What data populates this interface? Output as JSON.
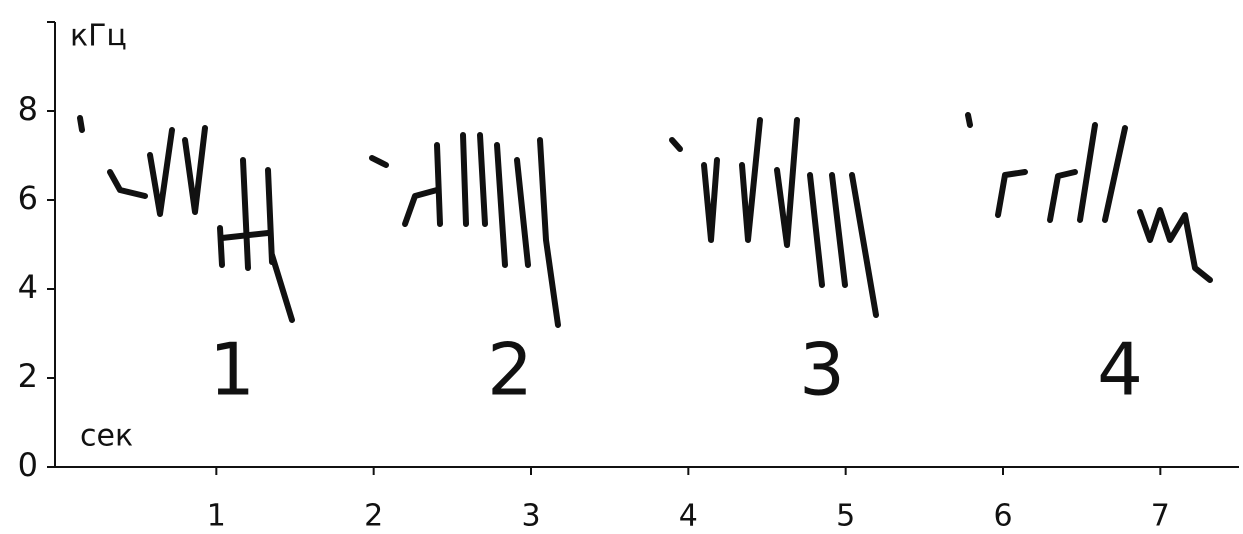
{
  "chart_data": {
    "type": "spectrogram",
    "ylabel": "кГц",
    "xlabel": "сек",
    "ylim": [
      0,
      10
    ],
    "yticks": [
      0,
      2,
      4,
      6,
      8
    ],
    "xlim": [
      0,
      7.5
    ],
    "xticks": [
      1,
      2,
      3,
      4,
      5,
      6,
      7
    ],
    "annotations": [
      "1",
      "2",
      "3",
      "4"
    ],
    "color": "#111111"
  }
}
